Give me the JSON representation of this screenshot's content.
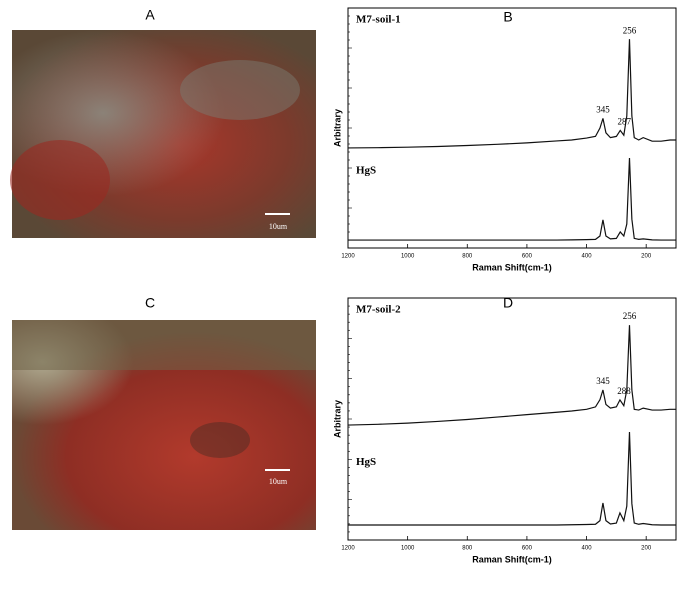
{
  "images": [
    {
      "label": "A",
      "scale_bar": "10um"
    },
    {
      "label": "C",
      "scale_bar": "10um"
    }
  ],
  "chart_data": [
    {
      "type": "line",
      "title": "B",
      "x_label": "Raman Shift(cm-1)",
      "y_label": "Arbitrary",
      "xlim": [
        1200,
        100
      ],
      "xticks": [
        1200,
        1000,
        800,
        600,
        400,
        200
      ],
      "ylim": [
        0,
        100
      ],
      "x": [
        1200,
        1100,
        1000,
        900,
        800,
        700,
        600,
        500,
        450,
        400,
        370,
        355,
        345,
        335,
        320,
        300,
        287,
        275,
        265,
        256,
        248,
        240,
        225,
        210,
        180,
        150,
        120,
        100
      ],
      "series": [
        {
          "name": "M7-soil-1",
          "color": "#111111",
          "values": [
            41.7,
            41.8,
            42,
            42.3,
            42.7,
            43.2,
            43.8,
            44.6,
            45,
            45.8,
            46.5,
            50,
            54,
            48,
            46,
            46.5,
            49,
            47,
            55,
            87,
            55,
            46,
            45,
            46,
            44.5,
            44.5,
            45,
            45
          ]
        },
        {
          "name": "HgS",
          "color": "#111111",
          "values": [
            3.3,
            3.3,
            3.3,
            3.3,
            3.3,
            3.3,
            3.3,
            3.3,
            3.4,
            3.5,
            3.6,
            5,
            11.7,
            5,
            3.8,
            4,
            6.7,
            5,
            10,
            37.5,
            12,
            4,
            3.6,
            3.8,
            3.4,
            3.3,
            3.3,
            3.3
          ]
        }
      ],
      "peak_labels": [
        256,
        345,
        287
      ]
    },
    {
      "type": "line",
      "title": "D",
      "x_label": "Raman Shift(cm-1)",
      "y_label": "Arbitrary",
      "xlim": [
        1200,
        100
      ],
      "xticks": [
        1200,
        1000,
        800,
        600,
        400,
        200
      ],
      "ylim": [
        0,
        100
      ],
      "x": [
        1200,
        1100,
        1000,
        900,
        800,
        700,
        600,
        500,
        450,
        400,
        370,
        355,
        345,
        335,
        320,
        300,
        288,
        275,
        265,
        256,
        248,
        240,
        225,
        210,
        180,
        150,
        120,
        100
      ],
      "series": [
        {
          "name": "M7-soil-2",
          "color": "#111111",
          "values": [
            47.5,
            47.8,
            48.3,
            49,
            49.8,
            50.8,
            51.8,
            52.8,
            53.3,
            54,
            55,
            58,
            62,
            56,
            54.5,
            55,
            57.9,
            55.5,
            62,
            88.8,
            62,
            54,
            53.7,
            54.5,
            53.7,
            53.7,
            54,
            54
          ]
        },
        {
          "name": "HgS",
          "color": "#111111",
          "values": [
            6.2,
            6.2,
            6.2,
            6.2,
            6.2,
            6.2,
            6.2,
            6.2,
            6.3,
            6.4,
            6.5,
            8,
            15.3,
            8,
            6.6,
            7,
            11.2,
            8,
            14,
            44.6,
            15,
            7,
            6.5,
            6.8,
            6.3,
            6.2,
            6.2,
            6.2
          ]
        }
      ],
      "peak_labels": [
        256,
        345,
        288
      ]
    }
  ]
}
